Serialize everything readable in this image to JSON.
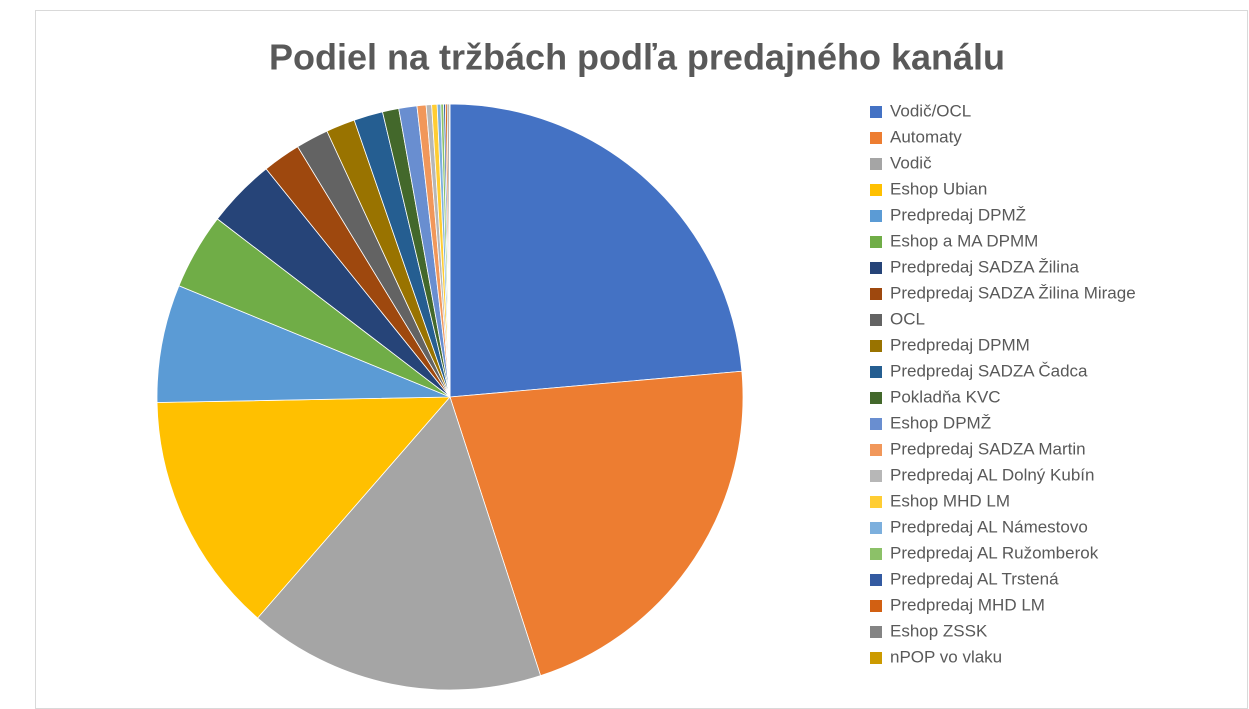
{
  "chart_data": {
    "type": "pie",
    "title": "Podiel na tržbách podľa predajného kanálu",
    "categories": [
      "Vodič/OCL",
      "Automaty",
      "Vodič",
      "Eshop Ubian",
      "Predpredaj DPMŽ",
      "Eshop a MA DPMM",
      "Predpredaj SADZA Žilina",
      "Predpredaj SADZA Žilina Mirage",
      "OCL",
      "Predpredaj DPMM",
      "Predpredaj SADZA Čadca",
      "Pokladňa KVC",
      "Eshop DPMŽ",
      "Predpredaj SADZA Martin",
      "Predpredaj AL Dolný Kubín",
      "Eshop MHD LM",
      "Predpredaj AL Námestovo",
      "Predpredaj AL Ružomberok",
      "Predpredaj AL Trstená",
      "Predpredaj MHD LM",
      "Eshop ZSSK",
      "nPOP vo vlaku"
    ],
    "values": [
      23.6,
      21.4,
      16.4,
      13.3,
      6.5,
      4.2,
      3.8,
      2.1,
      1.8,
      1.6,
      1.6,
      0.9,
      1.0,
      0.5,
      0.3,
      0.3,
      0.2,
      0.15,
      0.1,
      0.1,
      0.1,
      0.05
    ],
    "colors": [
      "#4472c4",
      "#ed7d31",
      "#a5a5a5",
      "#ffc000",
      "#5b9bd5",
      "#70ad47",
      "#264478",
      "#9e480e",
      "#636363",
      "#997300",
      "#255e91",
      "#43682b",
      "#698ed0",
      "#f1975a",
      "#b7b7b7",
      "#ffcd33",
      "#7cafdd",
      "#8cc168",
      "#335aa1",
      "#d26012",
      "#848484",
      "#cc9a00"
    ],
    "legend": "right"
  }
}
